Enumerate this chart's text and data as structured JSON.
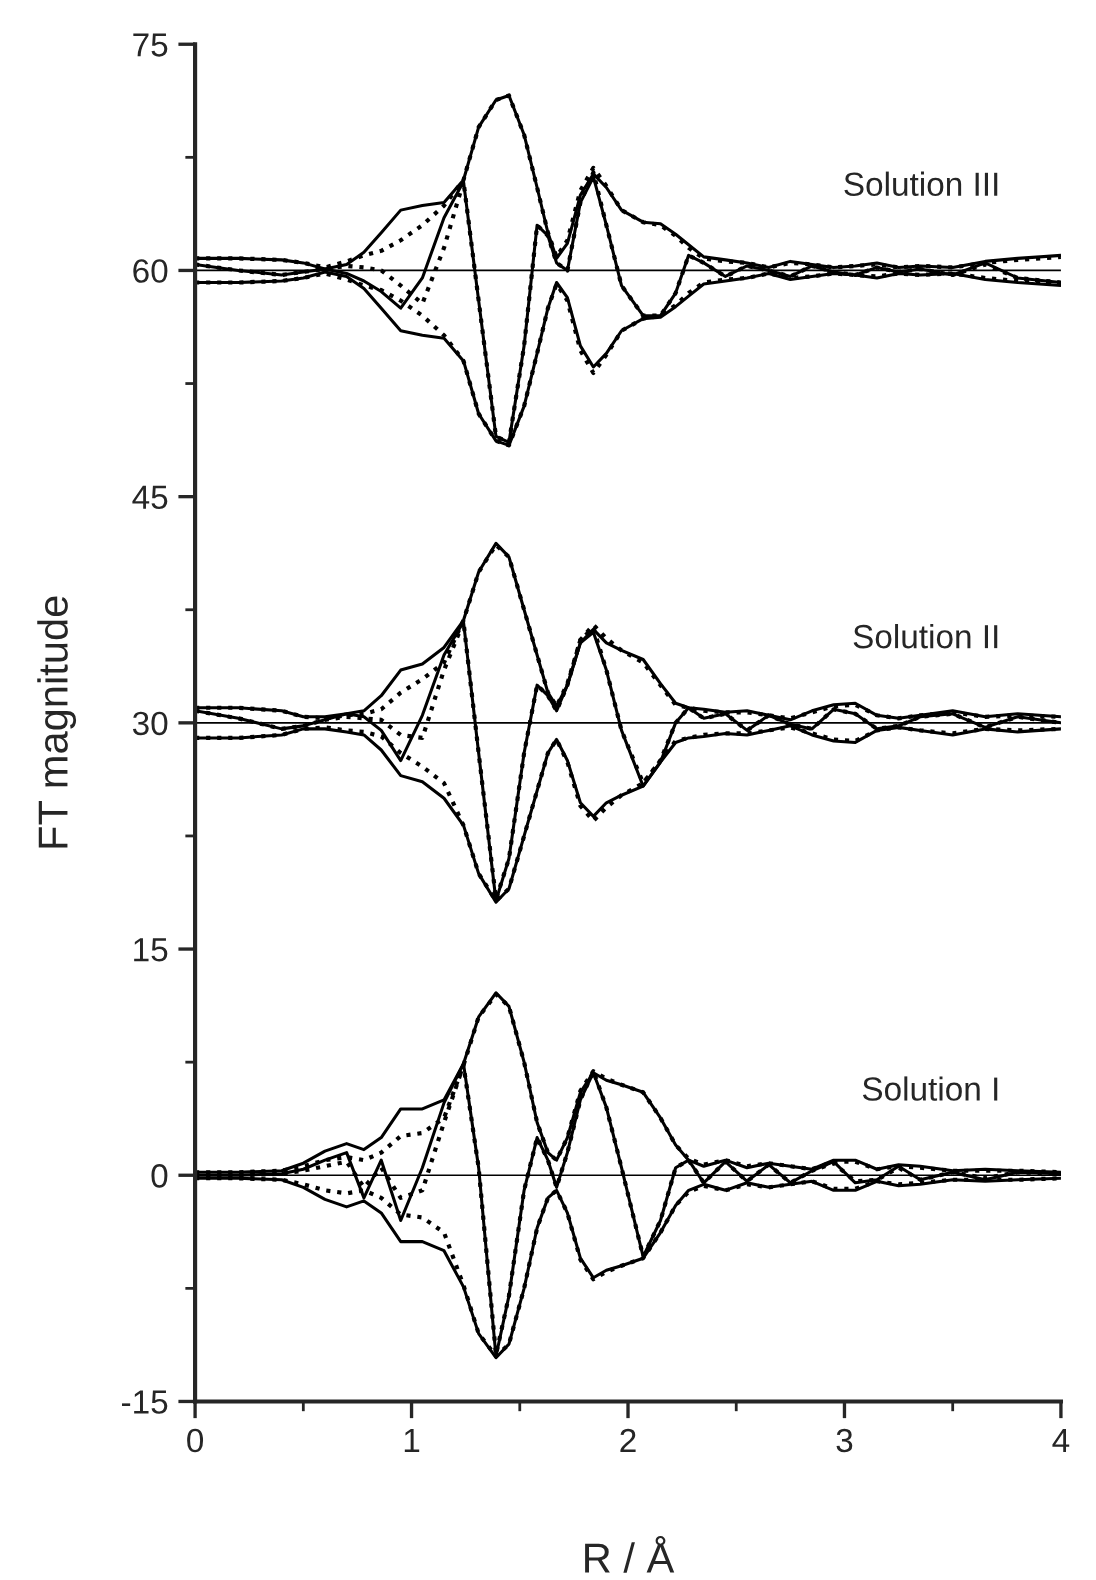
{
  "chart_data": {
    "type": "line",
    "xlabel": "R / Å",
    "ylabel": "FT magnitude",
    "xlim": [
      0,
      4
    ],
    "ylim": [
      -15,
      75
    ],
    "xticks": [
      0,
      {
        "value": 0.5,
        "label": null
      },
      1,
      {
        "value": 1.5,
        "label": null
      },
      2,
      {
        "value": 2.5,
        "label": null
      },
      3,
      {
        "value": 3.5,
        "label": null
      },
      4
    ],
    "yticks": [
      -15,
      {
        "value": -7.5,
        "label": null
      },
      0,
      {
        "value": 7.5,
        "label": null
      },
      15,
      {
        "value": 22.5,
        "label": null
      },
      30,
      {
        "value": 37.5,
        "label": null
      },
      45,
      {
        "value": 52.5,
        "label": null
      },
      60,
      {
        "value": 67.5,
        "label": null
      },
      75
    ],
    "grid": false,
    "legend": false,
    "marker": "none",
    "x": [
      0,
      0.2,
      0.4,
      0.5,
      0.6,
      0.7,
      0.78,
      0.86,
      0.95,
      1.05,
      1.15,
      1.24,
      1.31,
      1.39,
      1.45,
      1.52,
      1.58,
      1.63,
      1.67,
      1.72,
      1.78,
      1.84,
      1.9,
      1.97,
      2.07,
      2.15,
      2.22,
      2.28,
      2.35,
      2.45,
      2.55,
      2.65,
      2.75,
      2.85,
      2.95,
      3.05,
      3.15,
      3.25,
      3.35,
      3.5,
      3.65,
      3.8,
      4.0
    ],
    "ref_lines": [
      {
        "axis": "y",
        "value": 0,
        "color": "#000000"
      },
      {
        "axis": "y",
        "value": 30,
        "color": "#000000"
      },
      {
        "axis": "y",
        "value": 60,
        "color": "#000000"
      }
    ],
    "annotations": [
      "Solution I",
      "Solution II",
      "Solution III"
    ],
    "series": [
      {
        "color": "#000000",
        "line_style": "solid",
        "values": [
          0.2,
          0.2,
          0.3,
          0.8,
          1.6,
          2.1,
          1.7,
          2.5,
          4.4,
          4.4,
          5.0,
          7.4,
          10.5,
          12.1,
          11.2,
          7.5,
          3.5,
          1.5,
          1.0,
          2.5,
          5.5,
          6.8,
          6.3,
          6.0,
          5.5,
          3.8,
          2.0,
          1.0,
          0.6,
          1.0,
          0.5,
          0.8,
          0.6,
          0.4,
          1.0,
          1.0,
          0.4,
          0.7,
          0.6,
          0.3,
          0.4,
          0.3,
          0.2
        ]
      },
      {
        "color": "#000000",
        "line_style": "solid",
        "values": [
          -0.2,
          -0.2,
          -0.3,
          -0.8,
          -1.6,
          -2.1,
          -1.7,
          -2.5,
          -4.4,
          -4.4,
          -5.0,
          -7.4,
          -10.5,
          -12.1,
          -11.2,
          -7.5,
          -3.5,
          -1.5,
          -1.0,
          -2.5,
          -5.5,
          -6.8,
          -6.3,
          -6.0,
          -5.5,
          -3.8,
          -2.0,
          -1.0,
          -0.6,
          -1.0,
          -0.5,
          -0.8,
          -0.6,
          -0.4,
          -1.0,
          -1.0,
          -0.4,
          -0.7,
          -0.6,
          -0.3,
          -0.4,
          -0.3,
          -0.2
        ]
      },
      {
        "color": "#000000",
        "line_style": "solid",
        "values": [
          0,
          0,
          0.1,
          0.4,
          1.0,
          1.5,
          -1.5,
          1.0,
          -3.0,
          0.5,
          4.8,
          7.4,
          0.5,
          -12.0,
          -8.0,
          -1.0,
          2.5,
          1.0,
          -0.8,
          1.5,
          5.0,
          6.8,
          4.5,
          0.5,
          -5.4,
          -3.0,
          0.5,
          1.0,
          -0.5,
          0.9,
          -0.4,
          0.7,
          -0.5,
          0.3,
          0.9,
          -0.5,
          -0.3,
          0.6,
          -0.3,
          0.2,
          -0.3,
          0.2,
          0.1
        ]
      },
      {
        "color": "#000000",
        "line_style": "dotted",
        "values": [
          0.2,
          0.2,
          0.3,
          0.6,
          1.0,
          1.2,
          1.0,
          1.5,
          2.6,
          2.8,
          3.8,
          7.3,
          10.5,
          12.0,
          11.2,
          7.5,
          3.5,
          1.5,
          1.0,
          2.5,
          5.6,
          6.9,
          6.4,
          6.0,
          5.5,
          3.8,
          2.0,
          1.1,
          0.7,
          1.0,
          0.6,
          0.8,
          0.6,
          0.4,
          0.9,
          0.9,
          0.4,
          0.6,
          0.5,
          0.3,
          0.3,
          0.3,
          0.2
        ]
      },
      {
        "color": "#000000",
        "line_style": "dotted",
        "values": [
          -0.2,
          -0.2,
          -0.3,
          -0.6,
          -1.0,
          -1.2,
          -1.0,
          -1.5,
          -2.6,
          -2.8,
          -3.8,
          -7.3,
          -10.5,
          -12.0,
          -11.2,
          -7.5,
          -3.5,
          -1.5,
          -1.0,
          -2.5,
          -5.6,
          -6.9,
          -6.4,
          -6.0,
          -5.5,
          -3.8,
          -2.0,
          -1.1,
          -0.7,
          -1.0,
          -0.6,
          -0.8,
          -0.6,
          -0.4,
          -0.9,
          -0.9,
          -0.4,
          -0.6,
          -0.5,
          -0.3,
          -0.3,
          -0.3,
          -0.2
        ]
      },
      {
        "color": "#000000",
        "line_style": "dotted",
        "values": [
          0,
          0,
          0.1,
          0.3,
          0.6,
          0.9,
          -0.8,
          0.5,
          -1.5,
          -1.0,
          3.5,
          7.3,
          0.5,
          -11.9,
          -8.0,
          -1.0,
          2.5,
          1.0,
          -0.8,
          1.5,
          5.0,
          6.9,
          4.5,
          0.5,
          -5.4,
          -3.0,
          0.5,
          1.0,
          -0.5,
          0.9,
          -0.4,
          0.7,
          -0.5,
          0.3,
          0.8,
          -0.4,
          -0.3,
          0.5,
          -0.3,
          0.2,
          -0.2,
          0.2,
          0.1
        ]
      },
      {
        "color": "#000000",
        "line_style": "solid",
        "values": [
          31.0,
          31.0,
          30.8,
          30.4,
          30.4,
          30.6,
          30.8,
          31.8,
          33.5,
          33.9,
          35.0,
          36.8,
          40.0,
          41.9,
          41.0,
          37.5,
          34.5,
          32.0,
          31.1,
          32.5,
          35.3,
          36.2,
          35.3,
          34.8,
          34.2,
          32.6,
          31.3,
          31.0,
          30.9,
          30.7,
          30.8,
          30.5,
          30.2,
          30.8,
          31.2,
          31.3,
          30.5,
          30.3,
          30.5,
          30.8,
          30.4,
          30.6,
          30.4
        ]
      },
      {
        "color": "#000000",
        "line_style": "solid",
        "values": [
          29.0,
          29.0,
          29.2,
          29.6,
          29.6,
          29.4,
          29.2,
          28.2,
          26.5,
          26.1,
          25.0,
          23.2,
          20.0,
          18.1,
          19.0,
          22.5,
          25.5,
          28.0,
          28.9,
          27.5,
          24.7,
          23.8,
          24.7,
          25.2,
          25.8,
          27.4,
          28.7,
          29.0,
          29.1,
          29.3,
          29.2,
          29.5,
          29.8,
          29.2,
          28.8,
          28.7,
          29.5,
          29.7,
          29.5,
          29.2,
          29.6,
          29.4,
          29.6
        ]
      },
      {
        "color": "#000000",
        "line_style": "solid",
        "values": [
          30.8,
          30.3,
          29.6,
          29.8,
          30.2,
          30.6,
          30.4,
          29.5,
          27.5,
          30.5,
          34.5,
          36.7,
          28.0,
          18.2,
          21.0,
          28.0,
          32.5,
          31.8,
          30.8,
          32.5,
          35.3,
          36.0,
          33.5,
          29.5,
          25.8,
          27.4,
          30.0,
          31.0,
          30.3,
          30.6,
          29.5,
          30.5,
          29.9,
          29.6,
          30.9,
          30.6,
          29.6,
          29.8,
          30.4,
          30.6,
          29.7,
          30.4,
          30.0
        ]
      },
      {
        "color": "#000000",
        "line_style": "dotted",
        "values": [
          31.0,
          31.0,
          30.8,
          30.4,
          30.3,
          30.5,
          30.6,
          30.9,
          32.0,
          32.9,
          34.0,
          36.8,
          40.0,
          41.8,
          41.0,
          37.5,
          34.5,
          32.0,
          31.1,
          32.6,
          35.5,
          36.5,
          35.6,
          34.8,
          34.0,
          32.5,
          31.2,
          31.0,
          30.8,
          30.7,
          30.7,
          30.5,
          30.3,
          30.7,
          31.1,
          31.2,
          30.5,
          30.3,
          30.5,
          30.7,
          30.4,
          30.5,
          30.4
        ]
      },
      {
        "color": "#000000",
        "line_style": "dotted",
        "values": [
          29.0,
          29.0,
          29.2,
          29.6,
          29.7,
          29.5,
          29.4,
          29.1,
          28.0,
          27.1,
          26.0,
          23.2,
          20.0,
          18.2,
          19.0,
          22.5,
          25.5,
          28.0,
          28.9,
          27.4,
          24.5,
          23.5,
          24.4,
          25.2,
          26.0,
          27.5,
          28.8,
          29.0,
          29.2,
          29.3,
          29.3,
          29.5,
          29.7,
          29.3,
          28.9,
          28.8,
          29.5,
          29.7,
          29.5,
          29.3,
          29.6,
          29.5,
          29.6
        ]
      },
      {
        "color": "#000000",
        "line_style": "dotted",
        "values": [
          30.8,
          30.3,
          29.6,
          29.8,
          30.2,
          30.4,
          30.3,
          30.2,
          29.2,
          29.0,
          33.5,
          36.7,
          28.0,
          18.3,
          21.0,
          28.0,
          32.5,
          31.8,
          30.8,
          32.5,
          35.5,
          36.3,
          33.5,
          29.5,
          26.0,
          27.5,
          30.0,
          31.0,
          30.3,
          30.6,
          29.5,
          30.5,
          29.9,
          29.6,
          30.9,
          30.6,
          29.6,
          29.8,
          30.4,
          30.6,
          29.7,
          30.4,
          30.0
        ]
      },
      {
        "color": "#000000",
        "line_style": "solid",
        "values": [
          60.8,
          60.8,
          60.7,
          60.5,
          60.1,
          60.4,
          61.2,
          62.5,
          64.0,
          64.3,
          64.5,
          66.0,
          69.5,
          71.3,
          71.6,
          69.0,
          65.5,
          62.5,
          60.8,
          61.8,
          65.0,
          66.4,
          65.5,
          64.0,
          63.2,
          63.1,
          62.4,
          61.7,
          60.9,
          60.7,
          60.5,
          60.2,
          60.6,
          60.4,
          60.2,
          60.3,
          60.5,
          60.2,
          60.3,
          60.2,
          60.6,
          60.8,
          61.0
        ]
      },
      {
        "color": "#000000",
        "line_style": "solid",
        "values": [
          59.2,
          59.2,
          59.3,
          59.5,
          59.9,
          59.6,
          58.8,
          57.5,
          56.0,
          55.7,
          55.5,
          54.0,
          50.5,
          48.7,
          48.4,
          51.0,
          54.5,
          57.5,
          59.2,
          58.2,
          55.0,
          53.6,
          54.5,
          56.0,
          56.8,
          56.9,
          57.6,
          58.3,
          59.1,
          59.3,
          59.5,
          59.8,
          59.4,
          59.6,
          59.8,
          59.7,
          59.5,
          59.8,
          59.7,
          59.8,
          59.4,
          59.2,
          59.0
        ]
      },
      {
        "color": "#000000",
        "line_style": "solid",
        "values": [
          60.4,
          60.0,
          59.7,
          59.9,
          60.1,
          59.8,
          59.3,
          58.6,
          57.5,
          59.5,
          63.5,
          65.9,
          58.0,
          49.0,
          48.6,
          55.0,
          63.0,
          62.3,
          60.5,
          60.0,
          64.5,
          66.2,
          63.0,
          59.0,
          57.0,
          57.0,
          58.5,
          61.0,
          60.5,
          59.6,
          60.3,
          60.0,
          59.6,
          60.3,
          59.9,
          59.7,
          60.2,
          59.9,
          60.1,
          59.7,
          60.5,
          59.5,
          59.2
        ]
      },
      {
        "color": "#000000",
        "line_style": "dotted",
        "values": [
          60.8,
          60.8,
          60.7,
          60.5,
          60.2,
          60.6,
          61.0,
          61.3,
          62.0,
          63.0,
          64.3,
          66.0,
          69.5,
          71.3,
          71.6,
          69.0,
          65.5,
          62.5,
          60.9,
          62.0,
          65.3,
          66.8,
          65.6,
          64.0,
          63.2,
          63.0,
          62.3,
          61.5,
          60.8,
          60.6,
          60.5,
          60.2,
          60.5,
          60.4,
          60.2,
          60.3,
          60.4,
          60.2,
          60.3,
          60.2,
          60.5,
          60.7,
          60.9
        ]
      },
      {
        "color": "#000000",
        "line_style": "dotted",
        "values": [
          59.2,
          59.2,
          59.3,
          59.5,
          59.8,
          59.4,
          59.0,
          58.7,
          58.0,
          57.0,
          55.7,
          54.0,
          50.5,
          48.7,
          48.4,
          51.0,
          54.5,
          57.5,
          59.1,
          58.0,
          54.7,
          53.2,
          54.4,
          56.0,
          56.8,
          57.0,
          57.7,
          58.5,
          59.2,
          59.4,
          59.5,
          59.8,
          59.5,
          59.6,
          59.8,
          59.7,
          59.6,
          59.8,
          59.7,
          59.8,
          59.5,
          59.3,
          59.1
        ]
      },
      {
        "color": "#000000",
        "line_style": "dotted",
        "values": [
          60.4,
          60.0,
          59.7,
          59.9,
          60.1,
          60.3,
          60.2,
          60.0,
          59.0,
          57.8,
          61.5,
          65.9,
          58.0,
          49.0,
          48.6,
          55.0,
          63.0,
          62.3,
          60.5,
          60.0,
          64.5,
          66.5,
          63.0,
          59.0,
          57.0,
          57.0,
          58.5,
          61.0,
          60.5,
          59.6,
          60.3,
          60.0,
          59.6,
          60.3,
          59.9,
          59.7,
          60.2,
          59.9,
          60.1,
          59.7,
          60.4,
          59.5,
          59.2
        ]
      }
    ]
  }
}
